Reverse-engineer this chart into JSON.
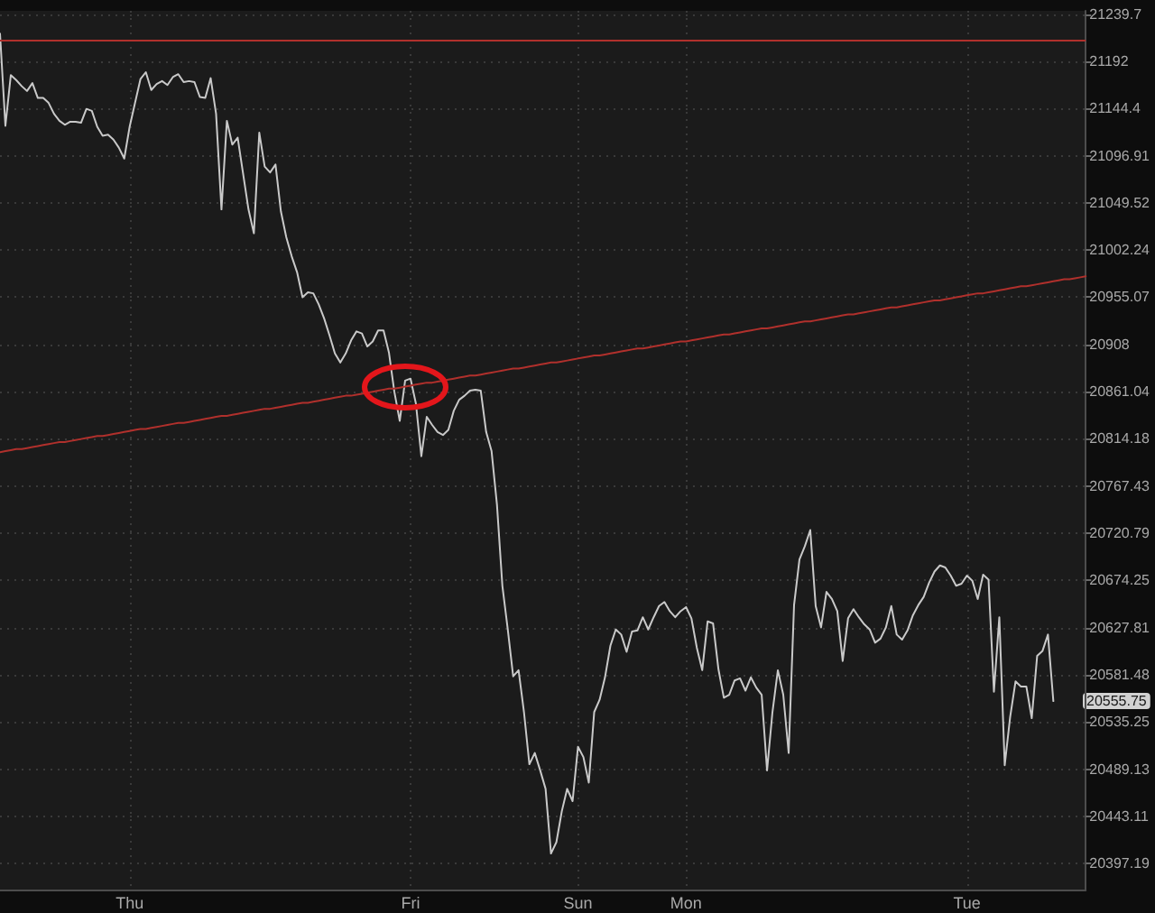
{
  "chart_data": {
    "type": "line",
    "categories": [
      null,
      null,
      null,
      null,
      null,
      null,
      null,
      null,
      null,
      null,
      null,
      null,
      null,
      null,
      null,
      null,
      null,
      null,
      null,
      null,
      null,
      null,
      null,
      null,
      "Thu",
      null,
      null,
      null,
      null,
      null,
      null,
      null,
      null,
      null,
      null,
      null,
      null,
      null,
      null,
      null,
      null,
      null,
      null,
      null,
      null,
      null,
      null,
      null,
      null,
      null,
      null,
      null,
      null,
      null,
      null,
      null,
      null,
      null,
      null,
      null,
      null,
      null,
      null,
      null,
      null,
      null,
      null,
      null,
      null,
      null,
      null,
      null,
      null,
      null,
      null,
      null,
      "Fri",
      null,
      null,
      null,
      null,
      null,
      null,
      null,
      null,
      null,
      null,
      null,
      null,
      null,
      null,
      null,
      null,
      null,
      null,
      null,
      null,
      null,
      null,
      null,
      null,
      null,
      null,
      null,
      null,
      null,
      null,
      "Sun",
      null,
      null,
      null,
      null,
      null,
      null,
      null,
      null,
      null,
      null,
      null,
      null,
      null,
      null,
      null,
      null,
      null,
      null,
      null,
      "Mon",
      null,
      null,
      null,
      null,
      null,
      null,
      null,
      null,
      null,
      null,
      null,
      null,
      null,
      null,
      null,
      null,
      null,
      null,
      null,
      null,
      null,
      null,
      null,
      null,
      null,
      null,
      null,
      null,
      null,
      null,
      null,
      null,
      null,
      null,
      null,
      null,
      null,
      null,
      null,
      null,
      null,
      null,
      null,
      null,
      null,
      null,
      null,
      null,
      null,
      null,
      null,
      "Tue",
      null,
      null,
      null,
      null,
      null,
      null,
      null,
      null,
      null,
      null,
      null,
      null,
      null,
      null,
      null,
      null,
      null,
      null,
      null,
      null,
      null,
      null
    ],
    "series": [
      {
        "color": "#c9c9c9",
        "values": [
          21220,
          21127,
          21178,
          21173,
          21167,
          21162,
          21170,
          21155,
          21155,
          21150,
          21139,
          21132,
          21128,
          21131,
          21131,
          21130,
          21144,
          21142,
          21126,
          21117,
          21118,
          21113,
          21105,
          21094,
          21126,
          21150,
          21174,
          21181,
          21163,
          21169,
          21172,
          21168,
          21176,
          21179,
          21171,
          21172,
          21171,
          21156,
          21155,
          21175,
          21139,
          21043,
          21132,
          21108,
          21115,
          21079,
          21043,
          21019,
          21120,
          21086,
          21080,
          21088,
          21041,
          21015,
          20996,
          20980,
          20955,
          20960,
          20959,
          20948,
          20934,
          20917,
          20899,
          20890,
          20899,
          20912,
          20921,
          20919,
          20906,
          20911,
          20922,
          20922,
          20900,
          20861,
          20832,
          20872,
          20874,
          20849,
          20797,
          20836,
          20828,
          20821,
          20818,
          20823,
          20842,
          20853,
          20857,
          20862,
          20863,
          20862,
          20821,
          20802,
          20749,
          20669,
          20626,
          20580,
          20586,
          20545,
          20494,
          20505,
          20488,
          20470,
          20407,
          20418,
          20448,
          20470,
          20458,
          20511,
          20501,
          20476,
          20545,
          20557,
          20579,
          20610,
          20626,
          20621,
          20604,
          20624,
          20625,
          20638,
          20626,
          20638,
          20649,
          20653,
          20644,
          20638,
          20644,
          20648,
          20637,
          20608,
          20586,
          20634,
          20632,
          20587,
          20559,
          20562,
          20576,
          20578,
          20566,
          20579,
          20569,
          20562,
          20488,
          20545,
          20586,
          20562,
          20505,
          20650,
          20695,
          20708,
          20724,
          20649,
          20628,
          20663,
          20656,
          20644,
          20595,
          20637,
          20646,
          20638,
          20631,
          20626,
          20613,
          20617,
          20628,
          20649,
          20621,
          20616,
          20625,
          20640,
          20650,
          20658,
          20672,
          20683,
          20689,
          20687,
          20679,
          20669,
          20671,
          20679,
          20674,
          20656,
          20680,
          20675,
          20565,
          20638,
          20493,
          20540,
          20575,
          20570,
          20570,
          20539,
          20600,
          20605,
          20621,
          20555.75,
          null,
          null,
          null,
          null,
          null,
          null
        ]
      },
      {
        "type": "line",
        "color": "#b0302c",
        "values": [
          20801,
          20802,
          20803,
          20804,
          20804,
          20805,
          20806,
          20807,
          20808,
          20809,
          20810,
          20811,
          20811,
          20812,
          20813,
          20814,
          20815,
          20816,
          20817,
          20817,
          20818,
          20819,
          20820,
          20821,
          20822,
          20823,
          20824,
          20824,
          20825,
          20826,
          20827,
          20828,
          20829,
          20830,
          20830,
          20831,
          20832,
          20833,
          20834,
          20835,
          20836,
          20837,
          20837,
          20838,
          20839,
          20840,
          20841,
          20842,
          20843,
          20844,
          20844,
          20845,
          20846,
          20847,
          20848,
          20849,
          20850,
          20850,
          20851,
          20852,
          20853,
          20854,
          20855,
          20856,
          20857,
          20857,
          20858,
          20859,
          20860,
          20861,
          20862,
          20863,
          20864,
          20864,
          20865,
          20866,
          20867,
          20868,
          20869,
          20870,
          20870,
          20871,
          20872,
          20873,
          20874,
          20875,
          20876,
          20877,
          20877,
          20878,
          20879,
          20880,
          20881,
          20882,
          20883,
          20884,
          20884,
          20885,
          20886,
          20887,
          20888,
          20889,
          20890,
          20890,
          20891,
          20892,
          20893,
          20894,
          20895,
          20896,
          20897,
          20897,
          20898,
          20899,
          20900,
          20901,
          20902,
          20903,
          20904,
          20904,
          20905,
          20906,
          20907,
          20908,
          20909,
          20910,
          20911,
          20911,
          20912,
          20913,
          20914,
          20915,
          20916,
          20917,
          20918,
          20918,
          20919,
          20920,
          20921,
          20922,
          20923,
          20924,
          20924,
          20925,
          20926,
          20927,
          20928,
          20929,
          20930,
          20931,
          20931,
          20932,
          20933,
          20934,
          20935,
          20936,
          20937,
          20938,
          20938,
          20939,
          20940,
          20941,
          20942,
          20943,
          20944,
          20945,
          20945,
          20946,
          20947,
          20948,
          20949,
          20950,
          20951,
          20952,
          20952,
          20953,
          20954,
          20955,
          20956,
          20957,
          20958,
          20959,
          20959,
          20960,
          20961,
          20962,
          20963,
          20964,
          20965,
          20966,
          20966,
          20967,
          20968,
          20969,
          20970,
          20971,
          20972,
          20973,
          20973,
          20974,
          20975,
          20976
        ]
      }
    ],
    "ylim": [
      20372,
      21243
    ],
    "yticks": [
      20397.19,
      20443.11,
      20489.13,
      20535.25,
      20581.48,
      20627.81,
      20674.25,
      20720.79,
      20767.43,
      20814.18,
      20861.04,
      20908,
      20955.07,
      21002.24,
      21049.52,
      21096.91,
      21144.4,
      21192,
      21239.7
    ],
    "log": "y",
    "grid": true,
    "marker": "none",
    "ref_lines": [
      {
        "axis": "y",
        "value": 21214,
        "color": "#b0302c"
      }
    ],
    "annotations": [
      "20555.75"
    ]
  }
}
